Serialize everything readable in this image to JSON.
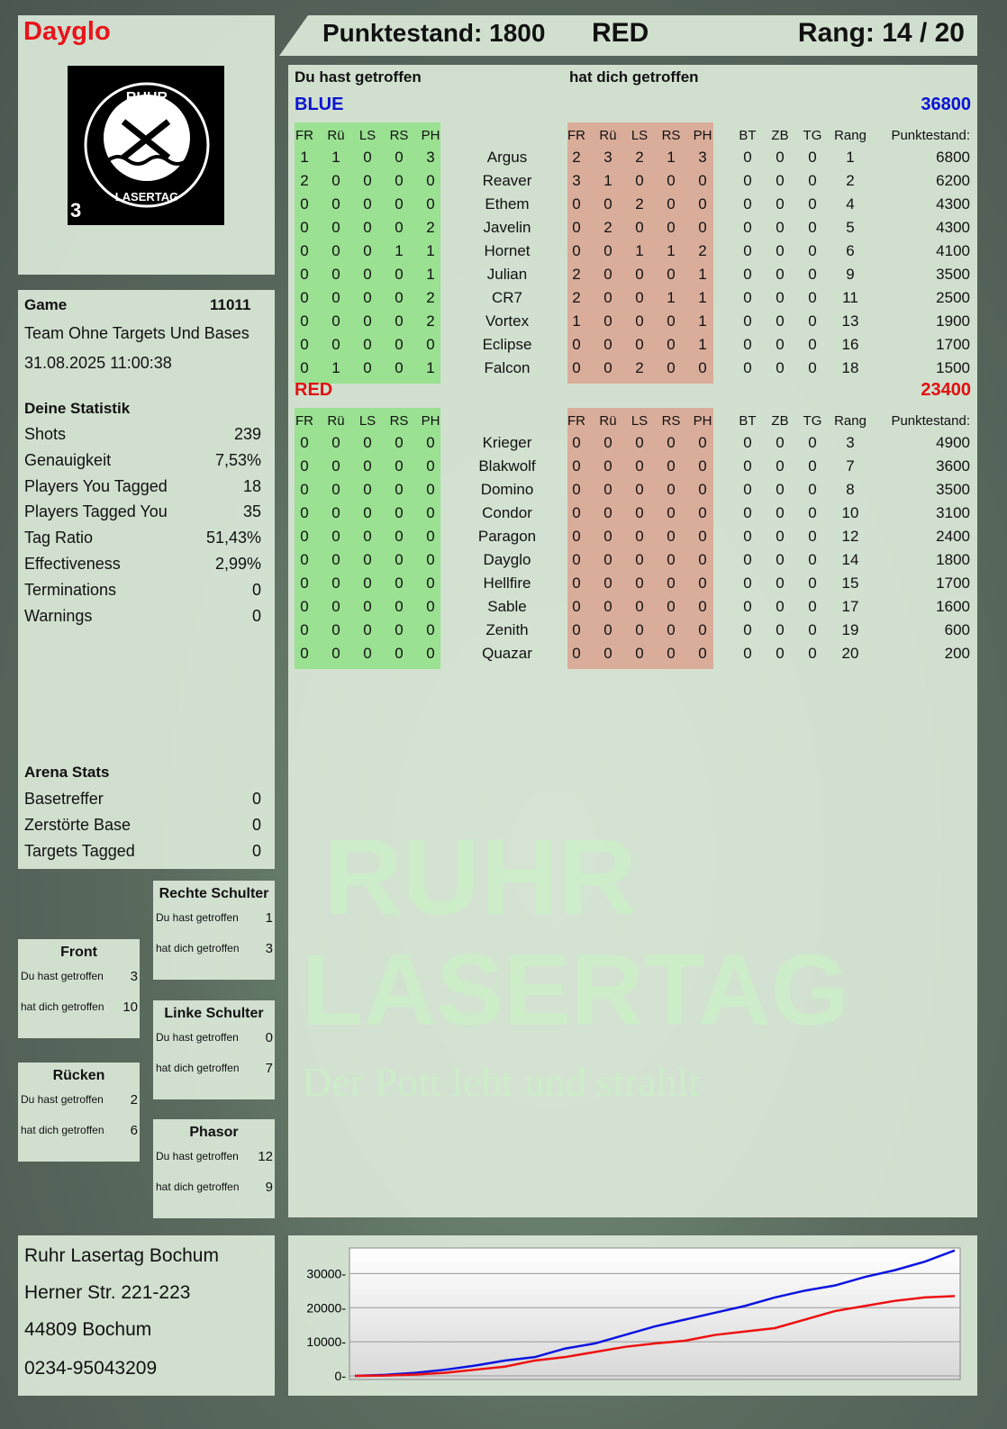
{
  "player": {
    "name": "Dayglo",
    "score_label": "Punktestand: 1800",
    "team": "RED",
    "rank_label": "Rang: 14 / 20"
  },
  "logo": {
    "text_top": "RUHR",
    "text_bottom": "LASERTAG",
    "badge": "3"
  },
  "watermark": {
    "line1": "RUHR",
    "line2": "LASERTAG",
    "tagline": "Der Pott lebt und strahlt"
  },
  "game": {
    "label": "Game",
    "id": "11011",
    "mode": "Team Ohne Targets Und Bases",
    "datetime": "31.08.2025 11:00:38"
  },
  "stats": {
    "title": "Deine Statistik",
    "items": [
      {
        "label": "Shots",
        "value": "239"
      },
      {
        "label": "Genauigkeit",
        "value": "7,53%"
      },
      {
        "label": "Players You Tagged",
        "value": "18"
      },
      {
        "label": "Players Tagged You",
        "value": "35"
      },
      {
        "label": "Tag Ratio",
        "value": "51,43%"
      },
      {
        "label": "Effectiveness",
        "value": "2,99%"
      },
      {
        "label": "Terminations",
        "value": "0"
      },
      {
        "label": "Warnings",
        "value": "0"
      }
    ]
  },
  "arena": {
    "title": "Arena Stats",
    "items": [
      {
        "label": "Basetreffer",
        "value": "0"
      },
      {
        "label": "Zerstörte Base",
        "value": "0"
      },
      {
        "label": "Targets Tagged",
        "value": "0"
      }
    ]
  },
  "zones": [
    {
      "title": "Rechte Schulter",
      "hit": "1",
      "got": "3"
    },
    {
      "title": "Front",
      "hit": "3",
      "got": "10"
    },
    {
      "title": "Linke Schulter",
      "hit": "0",
      "got": "7"
    },
    {
      "title": "Rücken",
      "hit": "2",
      "got": "6"
    },
    {
      "title": "Phasor",
      "hit": "12",
      "got": "9"
    }
  ],
  "zone_labels": {
    "hit": "Du hast getroffen",
    "got": "hat dich getroffen"
  },
  "table": {
    "you_hit": "Du hast getroffen",
    "hit_you": "hat dich getroffen",
    "cols_hit": [
      "FR",
      "Rü",
      "LS",
      "RS",
      "PH"
    ],
    "cols_extra": [
      "BT",
      "ZB",
      "TG",
      "Rang",
      "Punktestand:"
    ],
    "teams": [
      {
        "name": "BLUE",
        "color": "#0a14d0",
        "total": "36800",
        "players": [
          {
            "hit": [
              1,
              1,
              0,
              0,
              3
            ],
            "name": "Argus",
            "got": [
              2,
              3,
              2,
              1,
              3
            ],
            "extra": [
              0,
              0,
              0,
              1,
              6800
            ]
          },
          {
            "hit": [
              2,
              0,
              0,
              0,
              0
            ],
            "name": "Reaver",
            "got": [
              3,
              1,
              0,
              0,
              0
            ],
            "extra": [
              0,
              0,
              0,
              2,
              6200
            ]
          },
          {
            "hit": [
              0,
              0,
              0,
              0,
              0
            ],
            "name": "Ethem",
            "got": [
              0,
              0,
              2,
              0,
              0
            ],
            "extra": [
              0,
              0,
              0,
              4,
              4300
            ]
          },
          {
            "hit": [
              0,
              0,
              0,
              0,
              2
            ],
            "name": "Javelin",
            "got": [
              0,
              2,
              0,
              0,
              0
            ],
            "extra": [
              0,
              0,
              0,
              5,
              4300
            ]
          },
          {
            "hit": [
              0,
              0,
              0,
              1,
              1
            ],
            "name": "Hornet",
            "got": [
              0,
              0,
              1,
              1,
              2
            ],
            "extra": [
              0,
              0,
              0,
              6,
              4100
            ]
          },
          {
            "hit": [
              0,
              0,
              0,
              0,
              1
            ],
            "name": "Julian",
            "got": [
              2,
              0,
              0,
              0,
              1
            ],
            "extra": [
              0,
              0,
              0,
              9,
              3500
            ]
          },
          {
            "hit": [
              0,
              0,
              0,
              0,
              2
            ],
            "name": "CR7",
            "got": [
              2,
              0,
              0,
              1,
              1
            ],
            "extra": [
              0,
              0,
              0,
              11,
              2500
            ]
          },
          {
            "hit": [
              0,
              0,
              0,
              0,
              2
            ],
            "name": "Vortex",
            "got": [
              1,
              0,
              0,
              0,
              1
            ],
            "extra": [
              0,
              0,
              0,
              13,
              1900
            ]
          },
          {
            "hit": [
              0,
              0,
              0,
              0,
              0
            ],
            "name": "Eclipse",
            "got": [
              0,
              0,
              0,
              0,
              1
            ],
            "extra": [
              0,
              0,
              0,
              16,
              1700
            ]
          },
          {
            "hit": [
              0,
              1,
              0,
              0,
              1
            ],
            "name": "Falcon",
            "got": [
              0,
              0,
              2,
              0,
              0
            ],
            "extra": [
              0,
              0,
              0,
              18,
              1500
            ]
          }
        ]
      },
      {
        "name": "RED",
        "color": "#e01010",
        "total": "23400",
        "players": [
          {
            "hit": [
              0,
              0,
              0,
              0,
              0
            ],
            "name": "Krieger",
            "got": [
              0,
              0,
              0,
              0,
              0
            ],
            "extra": [
              0,
              0,
              0,
              3,
              4900
            ]
          },
          {
            "hit": [
              0,
              0,
              0,
              0,
              0
            ],
            "name": "Blakwolf",
            "got": [
              0,
              0,
              0,
              0,
              0
            ],
            "extra": [
              0,
              0,
              0,
              7,
              3600
            ]
          },
          {
            "hit": [
              0,
              0,
              0,
              0,
              0
            ],
            "name": "Domino",
            "got": [
              0,
              0,
              0,
              0,
              0
            ],
            "extra": [
              0,
              0,
              0,
              8,
              3500
            ]
          },
          {
            "hit": [
              0,
              0,
              0,
              0,
              0
            ],
            "name": "Condor",
            "got": [
              0,
              0,
              0,
              0,
              0
            ],
            "extra": [
              0,
              0,
              0,
              10,
              3100
            ]
          },
          {
            "hit": [
              0,
              0,
              0,
              0,
              0
            ],
            "name": "Paragon",
            "got": [
              0,
              0,
              0,
              0,
              0
            ],
            "extra": [
              0,
              0,
              0,
              12,
              2400
            ]
          },
          {
            "hit": [
              0,
              0,
              0,
              0,
              0
            ],
            "name": "Dayglo",
            "got": [
              0,
              0,
              0,
              0,
              0
            ],
            "extra": [
              0,
              0,
              0,
              14,
              1800
            ]
          },
          {
            "hit": [
              0,
              0,
              0,
              0,
              0
            ],
            "name": "Hellfire",
            "got": [
              0,
              0,
              0,
              0,
              0
            ],
            "extra": [
              0,
              0,
              0,
              15,
              1700
            ]
          },
          {
            "hit": [
              0,
              0,
              0,
              0,
              0
            ],
            "name": "Sable",
            "got": [
              0,
              0,
              0,
              0,
              0
            ],
            "extra": [
              0,
              0,
              0,
              17,
              1600
            ]
          },
          {
            "hit": [
              0,
              0,
              0,
              0,
              0
            ],
            "name": "Zenith",
            "got": [
              0,
              0,
              0,
              0,
              0
            ],
            "extra": [
              0,
              0,
              0,
              19,
              600
            ]
          },
          {
            "hit": [
              0,
              0,
              0,
              0,
              0
            ],
            "name": "Quazar",
            "got": [
              0,
              0,
              0,
              0,
              0
            ],
            "extra": [
              0,
              0,
              0,
              20,
              200
            ]
          }
        ]
      }
    ]
  },
  "address": [
    "Ruhr Lasertag Bochum",
    "Herner Str. 221-223",
    "44809 Bochum",
    "0234-95043209"
  ],
  "chart_data": {
    "type": "line",
    "ylim": [
      0,
      37500
    ],
    "yticks": [
      "0",
      "10000",
      "20000",
      "30000"
    ],
    "grid": true,
    "series": [
      {
        "color": "#0a14e0",
        "values": [
          0,
          300,
          900,
          1800,
          3000,
          4500,
          5500,
          8000,
          9500,
          12000,
          14500,
          16500,
          18500,
          20500,
          23000,
          25000,
          26500,
          29000,
          31000,
          33500,
          36800
        ]
      },
      {
        "color": "#ee1010",
        "values": [
          0,
          100,
          400,
          900,
          1800,
          2700,
          4500,
          5500,
          7000,
          8500,
          9500,
          10300,
          12000,
          13000,
          14000,
          16500,
          19000,
          20500,
          22000,
          23000,
          23400
        ]
      }
    ]
  }
}
